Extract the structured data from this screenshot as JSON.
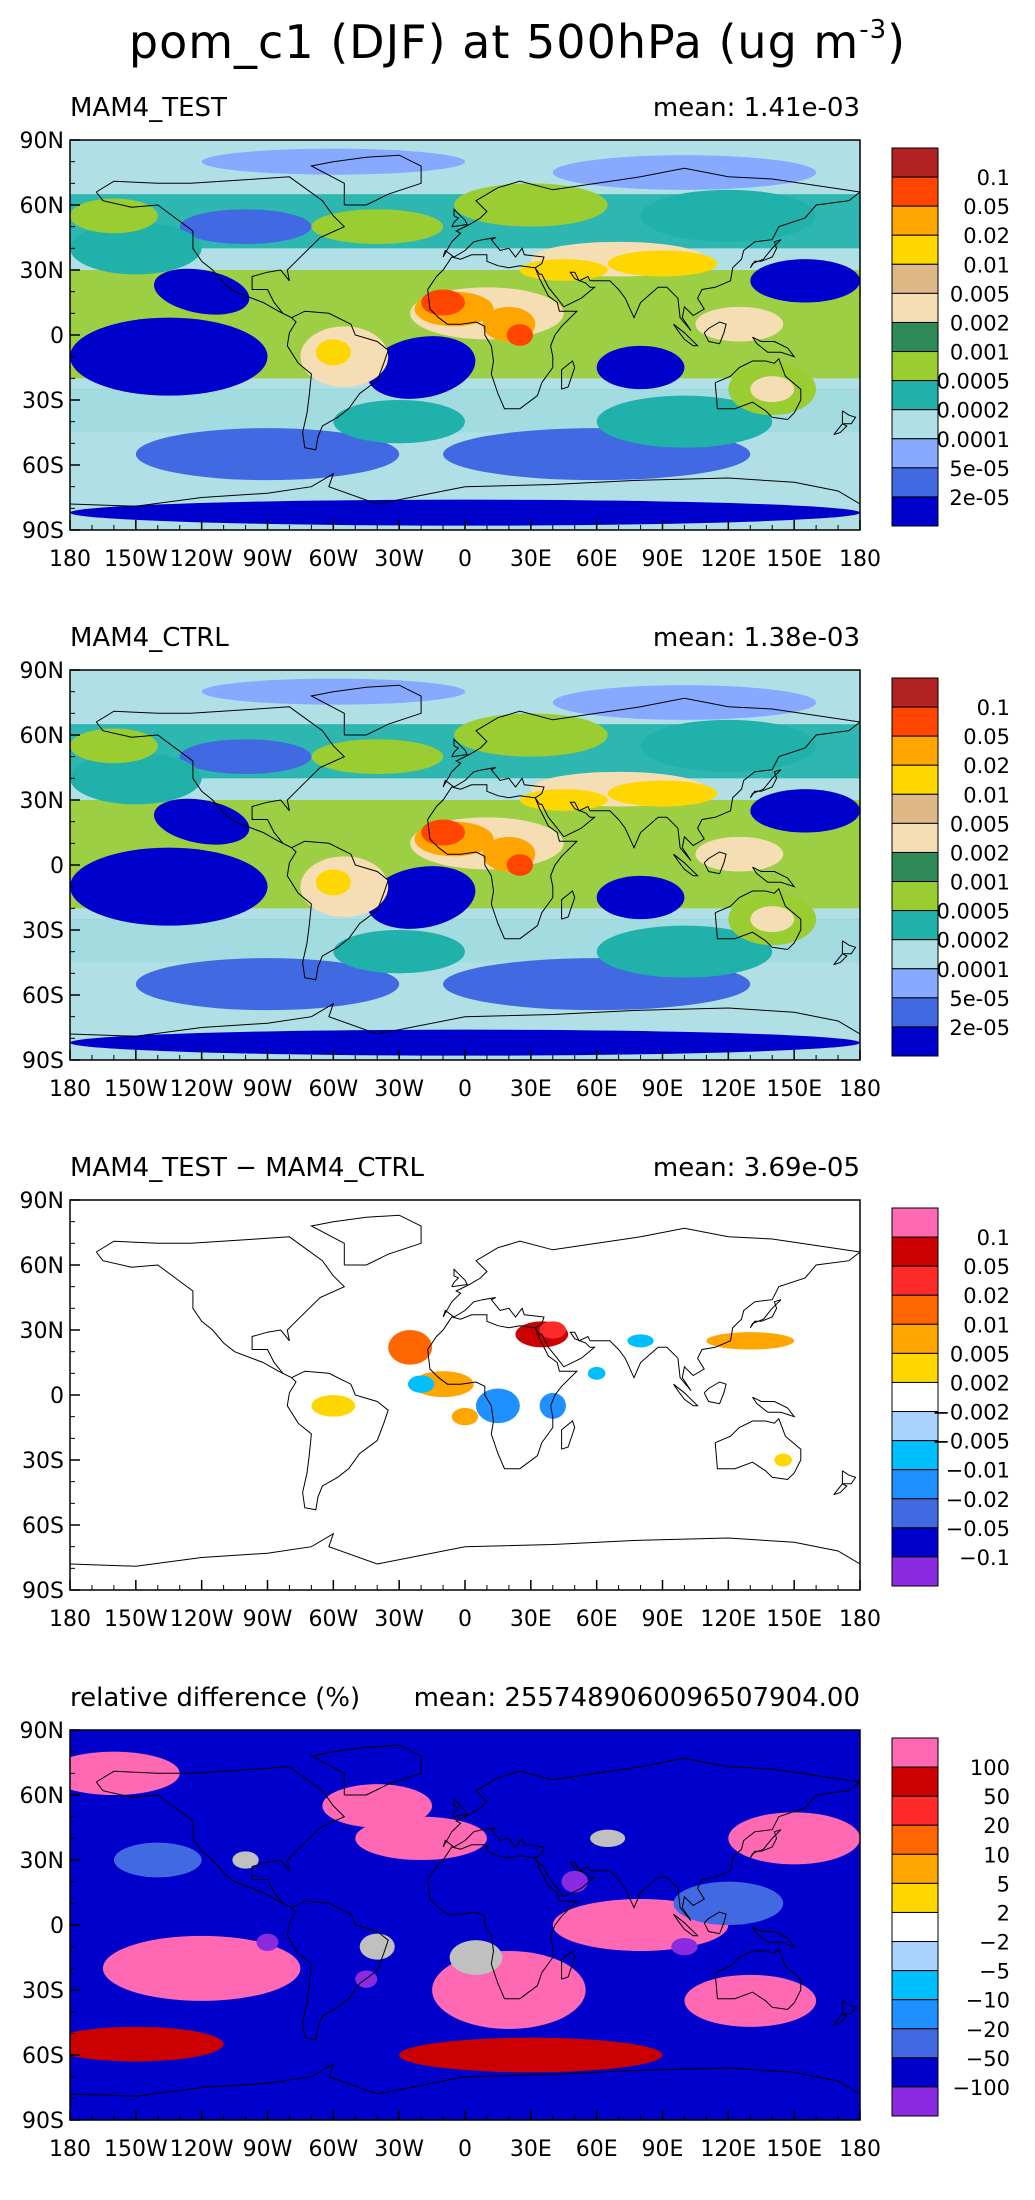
{
  "title": {
    "prefix": "pom_c1 (DJF) at 500hPa (ug m",
    "exponent": "-3",
    "suffix": ")"
  },
  "chart_data": [
    {
      "type": "heatmap",
      "title": "MAM4_TEST",
      "mean_label": "mean:",
      "mean_value": "1.41e-03",
      "x_ticks": [
        "180",
        "150W",
        "120W",
        "90W",
        "60W",
        "30W",
        "0",
        "30E",
        "60E",
        "90E",
        "120E",
        "150E",
        "180"
      ],
      "y_ticks": [
        "90N",
        "60N",
        "30N",
        "0",
        "30S",
        "60S",
        "90S"
      ],
      "xlim": [
        -180,
        180
      ],
      "ylim": [
        -90,
        90
      ],
      "colorbar_labels": [
        "0.1",
        "0.05",
        "0.02",
        "0.01",
        "0.005",
        "0.002",
        "0.001",
        "0.0005",
        "0.0002",
        "0.0001",
        "5e-05",
        "2e-05"
      ],
      "colorbar_colors": [
        "#b22222",
        "#ff4500",
        "#ffa500",
        "#ffd700",
        "#deb887",
        "#f5deb3",
        "#2e8b57",
        "#9acd32",
        "#20b2aa",
        "#b0e0e6",
        "#87a9ff",
        "#4169e1",
        "#0000cd"
      ],
      "color_scheme": "absolute"
    },
    {
      "type": "heatmap",
      "title": "MAM4_CTRL",
      "mean_label": "mean:",
      "mean_value": "1.38e-03",
      "x_ticks": [
        "180",
        "150W",
        "120W",
        "90W",
        "60W",
        "30W",
        "0",
        "30E",
        "60E",
        "90E",
        "120E",
        "150E",
        "180"
      ],
      "y_ticks": [
        "90N",
        "60N",
        "30N",
        "0",
        "30S",
        "60S",
        "90S"
      ],
      "xlim": [
        -180,
        180
      ],
      "ylim": [
        -90,
        90
      ],
      "colorbar_labels": [
        "0.1",
        "0.05",
        "0.02",
        "0.01",
        "0.005",
        "0.002",
        "0.001",
        "0.0005",
        "0.0002",
        "0.0001",
        "5e-05",
        "2e-05"
      ],
      "colorbar_colors": [
        "#b22222",
        "#ff4500",
        "#ffa500",
        "#ffd700",
        "#deb887",
        "#f5deb3",
        "#2e8b57",
        "#9acd32",
        "#20b2aa",
        "#b0e0e6",
        "#87a9ff",
        "#4169e1",
        "#0000cd"
      ],
      "color_scheme": "absolute"
    },
    {
      "type": "heatmap",
      "title": "MAM4_TEST − MAM4_CTRL",
      "mean_label": "mean:",
      "mean_value": "3.69e-05",
      "x_ticks": [
        "180",
        "150W",
        "120W",
        "90W",
        "60W",
        "30W",
        "0",
        "30E",
        "60E",
        "90E",
        "120E",
        "150E",
        "180"
      ],
      "y_ticks": [
        "90N",
        "60N",
        "30N",
        "0",
        "30S",
        "60S",
        "90S"
      ],
      "xlim": [
        -180,
        180
      ],
      "ylim": [
        -90,
        90
      ],
      "colorbar_labels": [
        "0.1",
        "0.05",
        "0.02",
        "0.01",
        "0.005",
        "0.002",
        "−0.002",
        "−0.005",
        "−0.01",
        "−0.02",
        "−0.05",
        "−0.1"
      ],
      "colorbar_colors": [
        "#ff69b4",
        "#cc0000",
        "#ff2a2a",
        "#ff6600",
        "#ffa500",
        "#ffd700",
        "#ffffff",
        "#aad4ff",
        "#00bfff",
        "#1e90ff",
        "#4169e1",
        "#0000cd",
        "#8a2be2"
      ],
      "color_scheme": "difference"
    },
    {
      "type": "heatmap",
      "title": "relative difference (%)",
      "mean_label": "mean:",
      "mean_value": "2557489060096507904.00",
      "x_ticks": [
        "180",
        "150W",
        "120W",
        "90W",
        "60W",
        "30W",
        "0",
        "30E",
        "60E",
        "90E",
        "120E",
        "150E",
        "180"
      ],
      "y_ticks": [
        "90N",
        "60N",
        "30N",
        "0",
        "30S",
        "60S",
        "90S"
      ],
      "xlim": [
        -180,
        180
      ],
      "ylim": [
        -90,
        90
      ],
      "colorbar_labels": [
        "100",
        "50",
        "20",
        "10",
        "5",
        "2",
        "−2",
        "−5",
        "−10",
        "−20",
        "−50",
        "−100"
      ],
      "colorbar_colors": [
        "#ff69b4",
        "#cc0000",
        "#ff2a2a",
        "#ff6600",
        "#ffa500",
        "#ffd700",
        "#ffffff",
        "#aad4ff",
        "#00bfff",
        "#1e90ff",
        "#4169e1",
        "#0000cd",
        "#8a2be2"
      ],
      "color_scheme": "relative"
    }
  ]
}
